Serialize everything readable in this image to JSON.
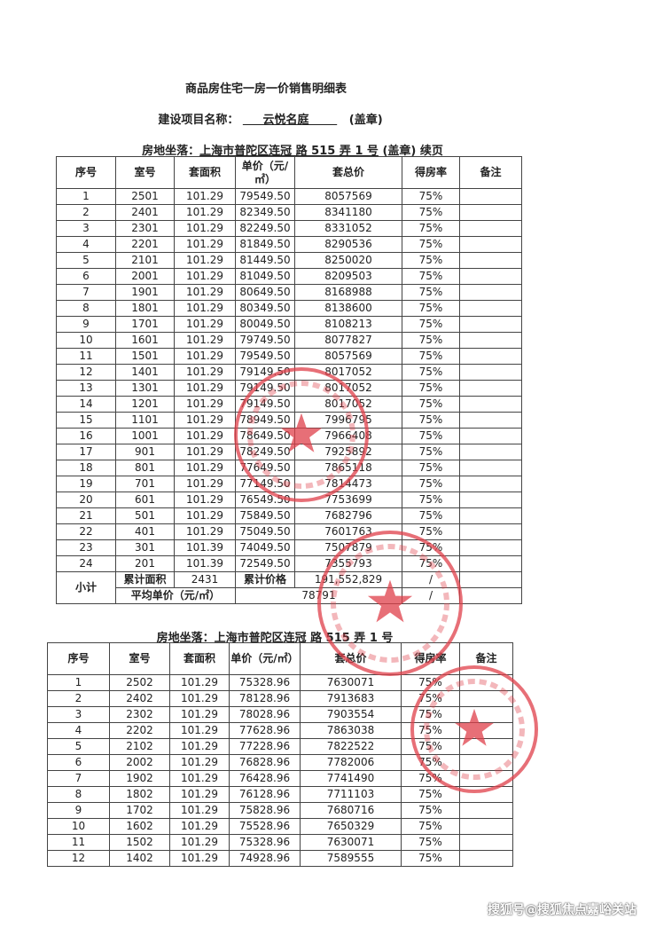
{
  "doc_title": "商品房住宅一房一价销售明细表",
  "project": {
    "label": "建设项目名称：",
    "name": "云悦名庭",
    "seal_note": "(盖章)"
  },
  "headers": [
    "序号",
    "室号",
    "套面积",
    "单价（元/㎡）",
    "套总价",
    "得房率",
    "备注"
  ],
  "table1": {
    "location_label": "房地坐落：",
    "location": "上海市普陀区连冠 路 515 弄 1 号",
    "suffix": "(盖章)  续页",
    "rows": [
      [
        "1",
        "2501",
        "101.29",
        "79549.50",
        "8057569",
        "75%",
        ""
      ],
      [
        "2",
        "2401",
        "101.29",
        "82349.50",
        "8341180",
        "75%",
        ""
      ],
      [
        "3",
        "2301",
        "101.29",
        "82249.50",
        "8331052",
        "75%",
        ""
      ],
      [
        "4",
        "2201",
        "101.29",
        "81849.50",
        "8290536",
        "75%",
        ""
      ],
      [
        "5",
        "2101",
        "101.29",
        "81449.50",
        "8250020",
        "75%",
        ""
      ],
      [
        "6",
        "2001",
        "101.29",
        "81049.50",
        "8209503",
        "75%",
        ""
      ],
      [
        "7",
        "1901",
        "101.29",
        "80649.50",
        "8168988",
        "75%",
        ""
      ],
      [
        "8",
        "1801",
        "101.29",
        "80349.50",
        "8138600",
        "75%",
        ""
      ],
      [
        "9",
        "1701",
        "101.29",
        "80049.50",
        "8108213",
        "75%",
        ""
      ],
      [
        "10",
        "1601",
        "101.29",
        "79749.50",
        "8077827",
        "75%",
        ""
      ],
      [
        "11",
        "1501",
        "101.29",
        "79549.50",
        "8057569",
        "75%",
        ""
      ],
      [
        "12",
        "1401",
        "101.29",
        "79149.50",
        "8017052",
        "75%",
        ""
      ],
      [
        "13",
        "1301",
        "101.29",
        "79149.50",
        "8017052",
        "75%",
        ""
      ],
      [
        "14",
        "1201",
        "101.29",
        "79149.50",
        "8017052",
        "75%",
        ""
      ],
      [
        "15",
        "1101",
        "101.29",
        "78949.50",
        "7996795",
        "75%",
        ""
      ],
      [
        "16",
        "1001",
        "101.29",
        "78649.50",
        "7966408",
        "75%",
        ""
      ],
      [
        "17",
        "901",
        "101.29",
        "78249.50",
        "7925892",
        "75%",
        ""
      ],
      [
        "18",
        "801",
        "101.29",
        "77649.50",
        "7865118",
        "75%",
        ""
      ],
      [
        "19",
        "701",
        "101.29",
        "77149.50",
        "7814473",
        "75%",
        ""
      ],
      [
        "20",
        "601",
        "101.29",
        "76549.50",
        "7753699",
        "75%",
        ""
      ],
      [
        "21",
        "501",
        "101.29",
        "75849.50",
        "7682796",
        "75%",
        ""
      ],
      [
        "22",
        "401",
        "101.29",
        "75049.50",
        "7601763",
        "75%",
        ""
      ],
      [
        "23",
        "301",
        "101.39",
        "74049.50",
        "7507879",
        "75%",
        ""
      ],
      [
        "24",
        "201",
        "101.39",
        "72549.50",
        "7355793",
        "75%",
        ""
      ]
    ],
    "subtotal": {
      "label": "小计",
      "area_label": "累计面积",
      "area": "2431",
      "price_label": "累计价格",
      "price": "191,552,829",
      "slash": "/",
      "avg_label": "平均单价（元/㎡）",
      "avg": "78791"
    }
  },
  "table2": {
    "location_label": "房地坐落：",
    "location": "上海市普陀区连冠 路 515 弄 1 号",
    "rows": [
      [
        "1",
        "2502",
        "101.29",
        "75328.96",
        "7630071",
        "75%",
        ""
      ],
      [
        "2",
        "2402",
        "101.29",
        "78128.96",
        "7913683",
        "75%",
        ""
      ],
      [
        "3",
        "2302",
        "101.29",
        "78028.96",
        "7903554",
        "75%",
        ""
      ],
      [
        "4",
        "2202",
        "101.29",
        "77628.96",
        "7863038",
        "75%",
        ""
      ],
      [
        "5",
        "2102",
        "101.29",
        "77228.96",
        "7822522",
        "75%",
        ""
      ],
      [
        "6",
        "2002",
        "101.29",
        "76828.96",
        "7782006",
        "75%",
        ""
      ],
      [
        "7",
        "1902",
        "101.29",
        "76428.96",
        "7741490",
        "75%",
        ""
      ],
      [
        "8",
        "1802",
        "101.29",
        "76128.96",
        "7711103",
        "75%",
        ""
      ],
      [
        "9",
        "1702",
        "101.29",
        "75828.96",
        "7680716",
        "75%",
        ""
      ],
      [
        "10",
        "1602",
        "101.29",
        "75528.96",
        "7650329",
        "75%",
        ""
      ],
      [
        "11",
        "1502",
        "101.29",
        "75328.96",
        "7630071",
        "75%",
        ""
      ],
      [
        "12",
        "1402",
        "101.29",
        "74928.96",
        "7589555",
        "75%",
        ""
      ]
    ]
  },
  "stamp_color": "#e0404a",
  "watermark": "搜狐号@搜狐焦点嘉峪关站"
}
